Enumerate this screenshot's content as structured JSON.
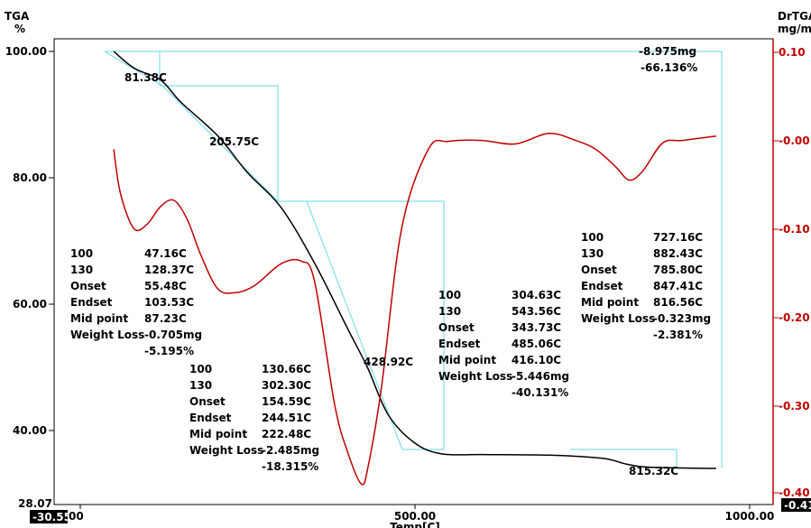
{
  "chart_data": {
    "type": "line",
    "left_axis": {
      "title": "TGA",
      "unit": "%",
      "ylim": [
        28.07,
        100.0
      ],
      "ticks": [
        "100.00",
        "80.00",
        "60.00",
        "40.00"
      ],
      "bottom_label": "28.07"
    },
    "right_axis": {
      "title": "DrTGA",
      "unit": "mg/mi",
      "ylim": [
        -0.41,
        0.11
      ],
      "ticks": [
        "0.10",
        "-0.00",
        "-0.10",
        "-0.20",
        "-0.30",
        "-0.40"
      ],
      "bottom_label": "-0.41"
    },
    "x_axis": {
      "xlabel": "Temp[C]",
      "xlim": [
        -30.55,
        1000.0
      ],
      "ticks": [
        "00",
        "500.00",
        "1000.00"
      ],
      "left_label": "-30.55"
    },
    "series": [
      {
        "color": "#000000",
        "x": [
          50,
          81.38,
          120,
          150,
          205.75,
          250,
          300,
          350,
          400,
          428.92,
          460,
          500,
          540,
          600,
          700,
          780,
          815.32,
          850,
          950
        ],
        "y": [
          100.0,
          97.3,
          95.5,
          92.0,
          86.6,
          80.8,
          75.3,
          66.5,
          56.0,
          50.0,
          42.5,
          38.0,
          36.3,
          36.2,
          36.1,
          35.6,
          34.7,
          34.2,
          34.0
        ]
      },
      {
        "color": "#c00000",
        "x": [
          50,
          60,
          80,
          100,
          120,
          140,
          160,
          180,
          205,
          230,
          260,
          300,
          330,
          350,
          380,
          400,
          420,
          430,
          450,
          480,
          520,
          550,
          600,
          650,
          700,
          740,
          770,
          800,
          820,
          840,
          870,
          900,
          950
        ],
        "y": [
          -0.01,
          -0.06,
          -0.1,
          -0.095,
          -0.075,
          -0.068,
          -0.09,
          -0.13,
          -0.168,
          -0.173,
          -0.165,
          -0.14,
          -0.137,
          -0.16,
          -0.3,
          -0.355,
          -0.39,
          -0.37,
          -0.28,
          -0.1,
          -0.01,
          -0.001,
          0.0,
          -0.004,
          0.008,
          0.0,
          -0.01,
          -0.03,
          -0.045,
          -0.035,
          -0.003,
          0.0,
          0.005
        ]
      }
    ],
    "annotations": [
      {
        "text": "81.38C",
        "x": 81.38,
        "y": 97.3
      },
      {
        "text": "205.75C",
        "x": 205.75,
        "y": 86.6
      },
      {
        "text": "428.92C",
        "x": 428.92,
        "y": 50.0
      },
      {
        "text": "815.32C",
        "x": 815.32,
        "y": 34.7
      },
      {
        "text": "-8.975mg",
        "x": 720,
        "y": 100.0
      },
      {
        "text": "-66.136%",
        "x": 720,
        "y": 98.0
      }
    ],
    "steps": [
      {
        "lines": [
          [
            "100",
            "47.16C"
          ],
          [
            "130",
            "128.37C"
          ],
          [
            "Onset",
            "55.48C"
          ],
          [
            "Endset",
            "103.53C"
          ],
          [
            "Mid point",
            "87.23C"
          ],
          [
            "Weight Loss",
            "-0.705mg"
          ],
          [
            "",
            "-5.195%"
          ]
        ]
      },
      {
        "lines": [
          [
            "100",
            "130.66C"
          ],
          [
            "130",
            "302.30C"
          ],
          [
            "Onset",
            "154.59C"
          ],
          [
            "Endset",
            "244.51C"
          ],
          [
            "Mid point",
            "222.48C"
          ],
          [
            "Weight Loss",
            "-2.485mg"
          ],
          [
            "",
            "-18.315%"
          ]
        ]
      },
      {
        "lines": [
          [
            "100",
            "304.63C"
          ],
          [
            "130",
            "543.56C"
          ],
          [
            "Onset",
            "343.73C"
          ],
          [
            "Endset",
            "485.06C"
          ],
          [
            "Mid point",
            "416.10C"
          ],
          [
            "Weight Loss",
            "-5.446mg"
          ],
          [
            "",
            "-40.131%"
          ]
        ]
      },
      {
        "lines": [
          [
            "100",
            "727.16C"
          ],
          [
            "130",
            "882.43C"
          ],
          [
            "Onset",
            "785.80C"
          ],
          [
            "Endset",
            "847.41C"
          ],
          [
            "Mid point",
            "816.56C"
          ],
          [
            "Weight Loss",
            "-0.323mg"
          ],
          [
            "",
            "-2.381%"
          ]
        ]
      }
    ],
    "colors": {
      "tga": "#000000",
      "dtga": "#c00000",
      "step_lines": "#7fe0e8",
      "axis": "#000000",
      "right_axis": "#c00000"
    },
    "grid": false
  }
}
